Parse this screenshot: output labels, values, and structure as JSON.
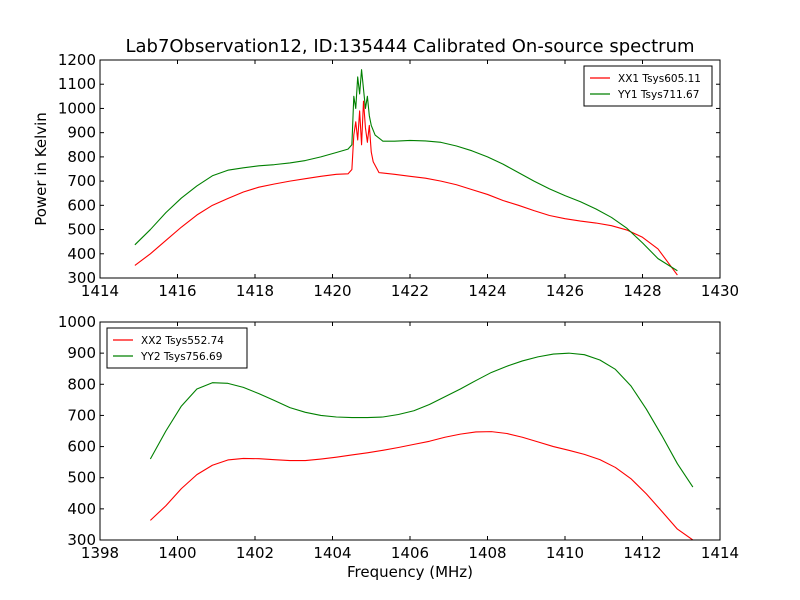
{
  "colors": {
    "xx": "#ff0000",
    "yy": "#008000"
  },
  "chart_data": [
    {
      "type": "line",
      "title": "Lab7Observation12, ID:135444 Calibrated On-source spectrum",
      "ylabel": "Power in Kelvin",
      "xlabel": "",
      "xlim": [
        1414,
        1430
      ],
      "ylim": [
        300,
        1200
      ],
      "xticks": [
        1414,
        1416,
        1418,
        1420,
        1422,
        1424,
        1426,
        1428,
        1430
      ],
      "yticks": [
        300,
        400,
        500,
        600,
        700,
        800,
        900,
        1000,
        1100,
        1200
      ],
      "grid": false,
      "legend_position": "top-right",
      "series": [
        {
          "name": "XX1 Tsys605.11",
          "color": "#ff0000",
          "points": [
            [
              1414.9,
              352
            ],
            [
              1415.3,
              400
            ],
            [
              1415.7,
              455
            ],
            [
              1416.1,
              510
            ],
            [
              1416.5,
              560
            ],
            [
              1416.9,
              600
            ],
            [
              1417.3,
              628
            ],
            [
              1417.7,
              655
            ],
            [
              1418.1,
              675
            ],
            [
              1418.5,
              688
            ],
            [
              1418.9,
              700
            ],
            [
              1419.3,
              710
            ],
            [
              1419.7,
              720
            ],
            [
              1420.1,
              728
            ],
            [
              1420.4,
              730
            ],
            [
              1420.5,
              748
            ],
            [
              1420.55,
              890
            ],
            [
              1420.6,
              945
            ],
            [
              1420.65,
              870
            ],
            [
              1420.7,
              990
            ],
            [
              1420.75,
              850
            ],
            [
              1420.8,
              1030
            ],
            [
              1420.85,
              920
            ],
            [
              1420.9,
              860
            ],
            [
              1420.95,
              930
            ],
            [
              1421.0,
              820
            ],
            [
              1421.05,
              780
            ],
            [
              1421.2,
              735
            ],
            [
              1421.6,
              728
            ],
            [
              1422.0,
              720
            ],
            [
              1422.4,
              712
            ],
            [
              1422.8,
              700
            ],
            [
              1423.2,
              685
            ],
            [
              1423.6,
              665
            ],
            [
              1424.0,
              645
            ],
            [
              1424.4,
              620
            ],
            [
              1424.8,
              600
            ],
            [
              1425.2,
              578
            ],
            [
              1425.6,
              558
            ],
            [
              1426.0,
              545
            ],
            [
              1426.4,
              535
            ],
            [
              1426.8,
              527
            ],
            [
              1427.2,
              516
            ],
            [
              1427.6,
              498
            ],
            [
              1428.0,
              468
            ],
            [
              1428.4,
              420
            ],
            [
              1428.9,
              312
            ]
          ]
        },
        {
          "name": "YY1 Tsys711.67",
          "color": "#008000",
          "points": [
            [
              1414.9,
              437
            ],
            [
              1415.3,
              500
            ],
            [
              1415.7,
              570
            ],
            [
              1416.1,
              630
            ],
            [
              1416.5,
              680
            ],
            [
              1416.9,
              722
            ],
            [
              1417.3,
              745
            ],
            [
              1417.7,
              755
            ],
            [
              1418.1,
              763
            ],
            [
              1418.5,
              768
            ],
            [
              1418.9,
              775
            ],
            [
              1419.3,
              785
            ],
            [
              1419.7,
              800
            ],
            [
              1420.1,
              818
            ],
            [
              1420.4,
              832
            ],
            [
              1420.5,
              850
            ],
            [
              1420.55,
              1050
            ],
            [
              1420.6,
              1000
            ],
            [
              1420.65,
              1130
            ],
            [
              1420.7,
              1060
            ],
            [
              1420.75,
              1160
            ],
            [
              1420.8,
              1080
            ],
            [
              1420.85,
              1000
            ],
            [
              1420.9,
              1050
            ],
            [
              1420.95,
              970
            ],
            [
              1421.0,
              930
            ],
            [
              1421.1,
              890
            ],
            [
              1421.3,
              865
            ],
            [
              1421.6,
              865
            ],
            [
              1422.0,
              868
            ],
            [
              1422.4,
              866
            ],
            [
              1422.8,
              860
            ],
            [
              1423.2,
              845
            ],
            [
              1423.6,
              825
            ],
            [
              1424.0,
              800
            ],
            [
              1424.4,
              770
            ],
            [
              1424.8,
              735
            ],
            [
              1425.2,
              700
            ],
            [
              1425.6,
              668
            ],
            [
              1426.0,
              640
            ],
            [
              1426.4,
              615
            ],
            [
              1426.8,
              585
            ],
            [
              1427.2,
              550
            ],
            [
              1427.6,
              505
            ],
            [
              1428.0,
              445
            ],
            [
              1428.4,
              380
            ],
            [
              1428.9,
              330
            ]
          ]
        }
      ]
    },
    {
      "type": "line",
      "title": "",
      "ylabel": "",
      "xlabel": "Frequency (MHz)",
      "xlim": [
        1398,
        1414
      ],
      "ylim": [
        300,
        1000
      ],
      "xticks": [
        1398,
        1400,
        1402,
        1404,
        1406,
        1408,
        1410,
        1412,
        1414
      ],
      "yticks": [
        300,
        400,
        500,
        600,
        700,
        800,
        900,
        1000
      ],
      "grid": false,
      "legend_position": "top-left",
      "series": [
        {
          "name": "XX2 Tsys552.74",
          "color": "#ff0000",
          "points": [
            [
              1399.3,
              363
            ],
            [
              1399.7,
              410
            ],
            [
              1400.1,
              465
            ],
            [
              1400.5,
              510
            ],
            [
              1400.9,
              540
            ],
            [
              1401.3,
              557
            ],
            [
              1401.7,
              562
            ],
            [
              1402.1,
              561
            ],
            [
              1402.5,
              558
            ],
            [
              1402.9,
              555
            ],
            [
              1403.3,
              555
            ],
            [
              1403.7,
              560
            ],
            [
              1404.1,
              566
            ],
            [
              1404.5,
              573
            ],
            [
              1404.9,
              580
            ],
            [
              1405.3,
              588
            ],
            [
              1405.7,
              597
            ],
            [
              1406.1,
              607
            ],
            [
              1406.5,
              617
            ],
            [
              1406.9,
              630
            ],
            [
              1407.3,
              640
            ],
            [
              1407.7,
              647
            ],
            [
              1408.1,
              648
            ],
            [
              1408.5,
              642
            ],
            [
              1408.9,
              630
            ],
            [
              1409.3,
              615
            ],
            [
              1409.7,
              600
            ],
            [
              1410.1,
              588
            ],
            [
              1410.5,
              575
            ],
            [
              1410.9,
              558
            ],
            [
              1411.3,
              533
            ],
            [
              1411.7,
              497
            ],
            [
              1412.1,
              448
            ],
            [
              1412.5,
              392
            ],
            [
              1412.9,
              335
            ],
            [
              1413.3,
              300
            ]
          ]
        },
        {
          "name": "YY2 Tsys756.69",
          "color": "#008000",
          "points": [
            [
              1399.3,
              560
            ],
            [
              1399.7,
              650
            ],
            [
              1400.1,
              730
            ],
            [
              1400.5,
              785
            ],
            [
              1400.9,
              805
            ],
            [
              1401.3,
              803
            ],
            [
              1401.7,
              790
            ],
            [
              1402.1,
              770
            ],
            [
              1402.5,
              748
            ],
            [
              1402.9,
              725
            ],
            [
              1403.3,
              710
            ],
            [
              1403.7,
              700
            ],
            [
              1404.1,
              695
            ],
            [
              1404.5,
              693
            ],
            [
              1404.9,
              693
            ],
            [
              1405.3,
              695
            ],
            [
              1405.7,
              703
            ],
            [
              1406.1,
              715
            ],
            [
              1406.5,
              735
            ],
            [
              1406.9,
              760
            ],
            [
              1407.3,
              785
            ],
            [
              1407.7,
              812
            ],
            [
              1408.1,
              838
            ],
            [
              1408.5,
              858
            ],
            [
              1408.9,
              875
            ],
            [
              1409.3,
              888
            ],
            [
              1409.7,
              897
            ],
            [
              1410.1,
              900
            ],
            [
              1410.5,
              895
            ],
            [
              1410.9,
              878
            ],
            [
              1411.3,
              848
            ],
            [
              1411.7,
              795
            ],
            [
              1412.1,
              720
            ],
            [
              1412.5,
              635
            ],
            [
              1412.9,
              545
            ],
            [
              1413.3,
              470
            ]
          ]
        }
      ]
    }
  ]
}
